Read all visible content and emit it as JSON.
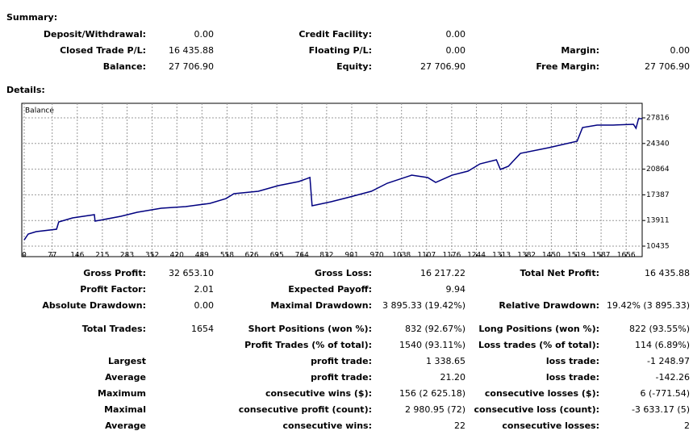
{
  "summary": {
    "title": "Summary:",
    "rows": [
      [
        "Deposit/Withdrawal:",
        "0.00",
        "Credit Facility:",
        "0.00",
        null,
        null
      ],
      [
        "Closed Trade P/L:",
        "16 435.88",
        "Floating P/L:",
        "0.00",
        "Margin:",
        "0.00"
      ],
      [
        "Balance:",
        "27 706.90",
        "Equity:",
        "27 706.90",
        "Free Margin:",
        "27 706.90"
      ]
    ]
  },
  "details": {
    "title": "Details:",
    "rows": [
      [
        "Gross Profit:",
        "32 653.10",
        "Gross Loss:",
        "16 217.22",
        "Total Net Profit:",
        "16 435.88"
      ],
      [
        "Profit Factor:",
        "2.01",
        "Expected Payoff:",
        "9.94",
        null,
        null
      ],
      [
        "Absolute Drawdown:",
        "0.00",
        "Maximal Drawdown:",
        "3 895.33 (19.42%)",
        "Relative Drawdown:",
        "19.42% (3 895.33)"
      ],
      [
        "Total Trades:",
        "1654",
        "Short Positions (won %):",
        "832 (92.67%)",
        "Long Positions (won %):",
        "822 (93.55%)"
      ],
      [
        null,
        null,
        "Profit Trades (% of total):",
        "1540 (93.11%)",
        "Loss trades (% of total):",
        "114 (6.89%)"
      ],
      [
        "Largest",
        null,
        "profit trade:",
        "1 338.65",
        "loss trade:",
        "-1 248.97"
      ],
      [
        "Average",
        null,
        "profit trade:",
        "21.20",
        "loss trade:",
        "-142.26"
      ],
      [
        "Maximum",
        null,
        "consecutive wins ($):",
        "156 (2 625.18)",
        "consecutive losses ($):",
        "6 (-771.54)"
      ],
      [
        "Maximal",
        null,
        "consecutive profit (count):",
        "2 980.95 (72)",
        "consecutive loss (count):",
        "-3 633.17 (5)"
      ],
      [
        "Average",
        null,
        "consecutive wins:",
        "22",
        "consecutive losses:",
        "2"
      ]
    ]
  },
  "chart_data": {
    "type": "line",
    "x": [
      0,
      11,
      33,
      89,
      95,
      133,
      193,
      195,
      266,
      311,
      377,
      444,
      511,
      555,
      577,
      644,
      699,
      755,
      786,
      792,
      844,
      888,
      955,
      999,
      1066,
      1110,
      1132,
      1177,
      1221,
      1254,
      1299,
      1310,
      1332,
      1365,
      1443,
      1521,
      1536,
      1576,
      1620,
      1676,
      1683,
      1690,
      1700
    ],
    "series": [
      {
        "name": "Balance",
        "color": "#000080",
        "values": [
          11271,
          12075,
          12400,
          12730,
          13714,
          14260,
          14700,
          13820,
          14480,
          15030,
          15570,
          15790,
          16230,
          16880,
          17540,
          17870,
          18630,
          19180,
          19730,
          15900,
          16450,
          16990,
          17870,
          18960,
          20050,
          19730,
          19070,
          20050,
          20600,
          21580,
          22130,
          20820,
          21260,
          23000,
          23770,
          24650,
          26500,
          26830,
          26830,
          26940,
          26400,
          27700,
          27707
        ]
      }
    ],
    "xlim": [
      0,
      1700
    ],
    "ylim": [
      9014,
      29783
    ],
    "xticks": [
      0,
      77,
      146,
      215,
      283,
      352,
      420,
      489,
      558,
      626,
      695,
      764,
      832,
      901,
      970,
      1038,
      1107,
      1176,
      1244,
      1313,
      1382,
      1450,
      1519,
      1587,
      1656
    ],
    "yticks": [
      10435,
      13911,
      17387,
      20864,
      24340,
      27816
    ],
    "grid": true
  }
}
